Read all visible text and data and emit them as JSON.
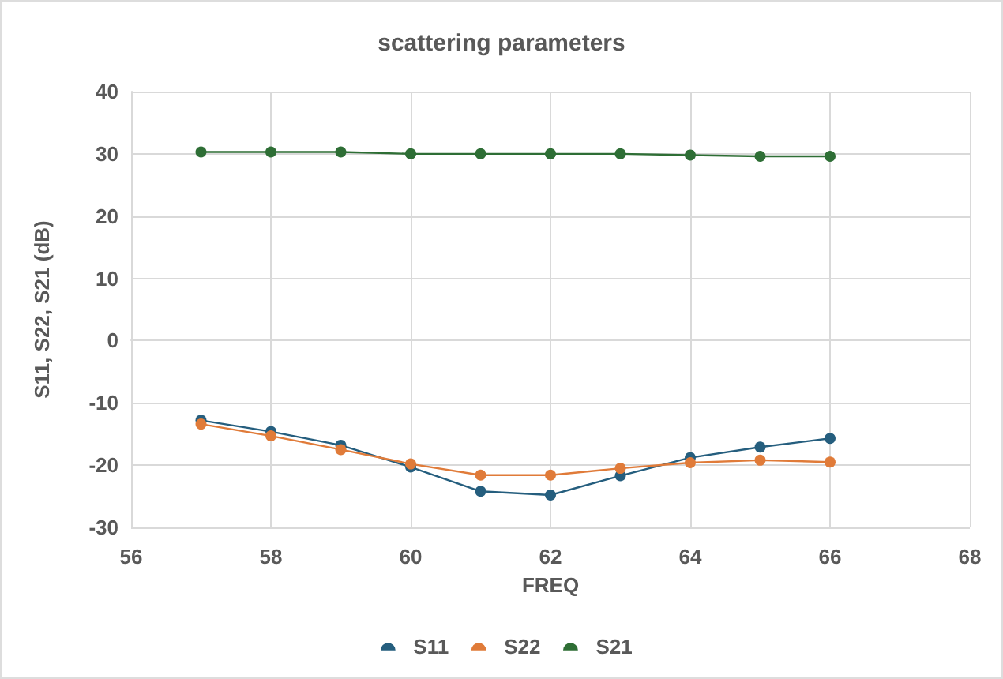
{
  "chart_data": {
    "type": "line",
    "title": "scattering parameters",
    "xlabel": "FREQ",
    "ylabel": "S11, S22, S21 (dB)",
    "x": [
      57,
      58,
      59,
      60,
      61,
      62,
      63,
      64,
      65,
      66
    ],
    "series": [
      {
        "name": "S11",
        "color": "#255e7e",
        "values": [
          -12.8,
          -14.6,
          -16.8,
          -20.3,
          -24.2,
          -24.8,
          -21.7,
          -18.8,
          -17.1,
          -15.7
        ]
      },
      {
        "name": "S22",
        "color": "#e07b39",
        "values": [
          -13.4,
          -15.3,
          -17.5,
          -19.8,
          -21.6,
          -21.6,
          -20.5,
          -19.6,
          -19.2,
          -19.5
        ]
      },
      {
        "name": "S21",
        "color": "#2e6e35",
        "values": [
          30.3,
          30.3,
          30.3,
          30.0,
          30.0,
          30.0,
          30.0,
          29.8,
          29.6,
          29.6
        ]
      }
    ],
    "xlim": [
      56,
      68
    ],
    "xticks": [
      56,
      58,
      60,
      62,
      64,
      66,
      68
    ],
    "ylim": [
      -30,
      40
    ],
    "yticks": [
      -30,
      -20,
      -10,
      0,
      10,
      20,
      30,
      40
    ],
    "grid": true,
    "legend": "bottom",
    "marker": "circle",
    "line_style": "solid"
  }
}
